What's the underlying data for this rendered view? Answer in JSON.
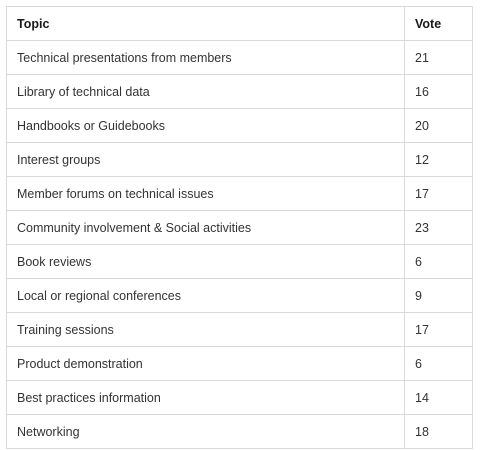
{
  "table": {
    "headers": {
      "topic": "Topic",
      "vote": "Vote"
    },
    "rows": [
      {
        "topic": "Technical presentations from members",
        "vote": "21"
      },
      {
        "topic": "Library of technical data",
        "vote": "16"
      },
      {
        "topic": "Handbooks or Guidebooks",
        "vote": "20"
      },
      {
        "topic": "Interest groups",
        "vote": "12"
      },
      {
        "topic": "Member forums on technical issues",
        "vote": "17"
      },
      {
        "topic": "Community involvement & Social activities",
        "vote": "23"
      },
      {
        "topic": "Book reviews",
        "vote": "6"
      },
      {
        "topic": "Local or regional conferences",
        "vote": "9"
      },
      {
        "topic": "Training sessions",
        "vote": "17"
      },
      {
        "topic": "Product demonstration",
        "vote": "6"
      },
      {
        "topic": "Best practices information",
        "vote": "14"
      },
      {
        "topic": "Networking",
        "vote": "18"
      }
    ]
  }
}
